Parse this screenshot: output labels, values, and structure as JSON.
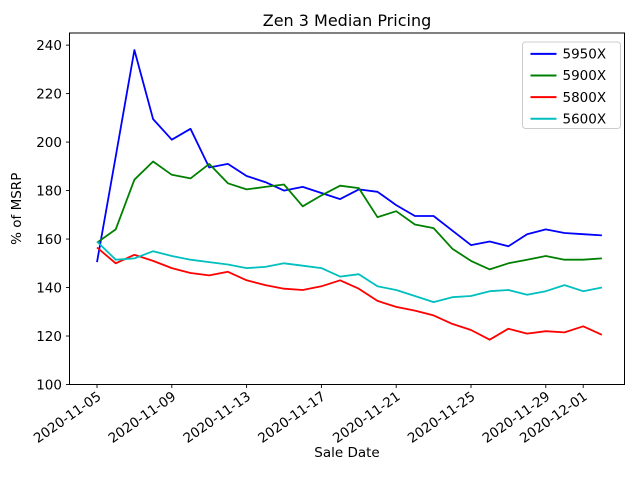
{
  "chart_data": {
    "type": "line",
    "title": "Zen 3 Median Pricing",
    "xlabel": "Sale Date",
    "ylabel": "% of MSRP",
    "x_dates": [
      "2020-11-05",
      "2020-11-06",
      "2020-11-07",
      "2020-11-08",
      "2020-11-09",
      "2020-11-10",
      "2020-11-11",
      "2020-11-12",
      "2020-11-13",
      "2020-11-14",
      "2020-11-15",
      "2020-11-16",
      "2020-11-17",
      "2020-11-18",
      "2020-11-19",
      "2020-11-20",
      "2020-11-21",
      "2020-11-22",
      "2020-11-23",
      "2020-11-24",
      "2020-11-25",
      "2020-11-26",
      "2020-11-27",
      "2020-11-28",
      "2020-11-29",
      "2020-11-30",
      "2020-12-01",
      "2020-12-02"
    ],
    "series": [
      {
        "name": "5950X",
        "color": "#0000ff",
        "values": [
          150.5,
          194,
          238,
          209.5,
          201,
          205.5,
          189.5,
          191,
          186,
          183.5,
          180,
          181.5,
          179,
          176.5,
          180.5,
          179.5,
          174,
          169.5,
          169.5,
          163.5,
          157.5,
          159,
          157,
          162,
          164,
          162.5,
          162,
          161.5
        ]
      },
      {
        "name": "5900X",
        "color": "#008000",
        "values": [
          158.5,
          164,
          184.5,
          192,
          186.5,
          185,
          191,
          183,
          180.5,
          181.5,
          182.5,
          173.5,
          178,
          182,
          181,
          169,
          171.5,
          166,
          164.5,
          156,
          151,
          147.5,
          150,
          151.5,
          153,
          151.5,
          151.5,
          152
        ]
      },
      {
        "name": "5800X",
        "color": "#ff0000",
        "values": [
          156.5,
          150,
          153.5,
          151,
          148,
          146,
          145,
          146.5,
          143,
          141,
          139.5,
          139,
          140.5,
          143,
          139.5,
          134.5,
          132,
          130.5,
          128.5,
          125,
          122.5,
          118.5,
          123,
          121,
          122,
          121.5,
          124,
          120.5
        ]
      },
      {
        "name": "5600X",
        "color": "#00bfbf",
        "values": [
          159,
          151.5,
          152,
          155,
          153,
          151.5,
          150.5,
          149.5,
          148,
          148.5,
          150,
          149,
          148,
          144.5,
          145.5,
          140.5,
          139,
          136.5,
          134,
          136,
          136.5,
          138.5,
          139,
          137,
          138.5,
          141,
          138.5,
          140
        ]
      }
    ],
    "ylim": [
      100,
      245
    ],
    "yticks": [
      100,
      120,
      140,
      160,
      180,
      200,
      220,
      240
    ],
    "xticks": {
      "day_indices": [
        0,
        4,
        8,
        12,
        16,
        20,
        24,
        26
      ],
      "labels": [
        "2020-11-05",
        "2020-11-09",
        "2020-11-13",
        "2020-11-17",
        "2020-11-21",
        "2020-11-25",
        "2020-11-29",
        "2020-12-01"
      ]
    },
    "grid": false,
    "legend_position": "upper right",
    "xtick_rotation_deg": 35
  },
  "colors": {
    "background": "#ffffff",
    "axes": "#000000",
    "legend_border": "#cccccc",
    "legend_background": "#ffffff"
  }
}
